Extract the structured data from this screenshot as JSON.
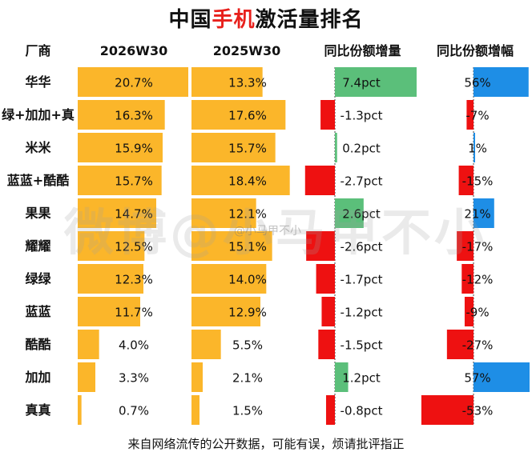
{
  "title": {
    "part1": "中国",
    "accent": "手机",
    "part2": "激活量排名"
  },
  "headers": {
    "brand": "厂商",
    "col1": "2026W30",
    "col2": "2025W30",
    "col3": "同比份额增量",
    "col4": "同比份额增幅"
  },
  "footer": "来自网络流传的公开数据，可能有误，烦请批评指正",
  "watermark": {
    "big": "微博@小马甲不小",
    "small": "@小马甲不小"
  },
  "colors": {
    "bar": "#fbb62a",
    "positive_share": "#5bbf7a",
    "negative": "#ee1111",
    "positive_growth": "#1e8ee6",
    "title_accent": "#e8201c"
  },
  "chart_data": {
    "type": "table",
    "columns": [
      "2026W30",
      "2025W30",
      "同比份额增量",
      "同比份额增幅"
    ],
    "rows": [
      {
        "brand": "华华",
        "share_2026": 20.7,
        "share_2025": 13.3,
        "delta_pct": 7.4,
        "growth": 56,
        "l_2026": "20.7%",
        "l_2025": "13.3%",
        "l_delta": "7.4pct",
        "l_growth": "56%"
      },
      {
        "brand": "绿+加加+真",
        "share_2026": 16.3,
        "share_2025": 17.6,
        "delta_pct": -1.3,
        "growth": -7,
        "l_2026": "16.3%",
        "l_2025": "17.6%",
        "l_delta": "-1.3pct",
        "l_growth": "-7%"
      },
      {
        "brand": "米米",
        "share_2026": 15.9,
        "share_2025": 15.7,
        "delta_pct": 0.2,
        "growth": 1,
        "l_2026": "15.9%",
        "l_2025": "15.7%",
        "l_delta": "0.2pct",
        "l_growth": "1%"
      },
      {
        "brand": "蓝蓝+酷酷",
        "share_2026": 15.7,
        "share_2025": 18.4,
        "delta_pct": -2.7,
        "growth": -15,
        "l_2026": "15.7%",
        "l_2025": "18.4%",
        "l_delta": "-2.7pct",
        "l_growth": "-15%"
      },
      {
        "brand": "果果",
        "share_2026": 14.7,
        "share_2025": 12.1,
        "delta_pct": 2.6,
        "growth": 21,
        "l_2026": "14.7%",
        "l_2025": "12.1%",
        "l_delta": "2.6pct",
        "l_growth": "21%"
      },
      {
        "brand": "耀耀",
        "share_2026": 12.5,
        "share_2025": 15.1,
        "delta_pct": -2.6,
        "growth": -17,
        "l_2026": "12.5%",
        "l_2025": "15.1%",
        "l_delta": "-2.6pct",
        "l_growth": "-17%"
      },
      {
        "brand": "绿绿",
        "share_2026": 12.3,
        "share_2025": 14.0,
        "delta_pct": -1.7,
        "growth": -12,
        "l_2026": "12.3%",
        "l_2025": "14.0%",
        "l_delta": "-1.7pct",
        "l_growth": "-12%"
      },
      {
        "brand": "蓝蓝",
        "share_2026": 11.7,
        "share_2025": 12.9,
        "delta_pct": -1.2,
        "growth": -9,
        "l_2026": "11.7%",
        "l_2025": "12.9%",
        "l_delta": "-1.2pct",
        "l_growth": "-9%"
      },
      {
        "brand": "酷酷",
        "share_2026": 4.0,
        "share_2025": 5.5,
        "delta_pct": -1.5,
        "growth": -27,
        "l_2026": "4.0%",
        "l_2025": "5.5%",
        "l_delta": "-1.5pct",
        "l_growth": "-27%"
      },
      {
        "brand": "加加",
        "share_2026": 3.3,
        "share_2025": 2.1,
        "delta_pct": 1.2,
        "growth": 57,
        "l_2026": "3.3%",
        "l_2025": "2.1%",
        "l_delta": "1.2pct",
        "l_growth": "57%"
      },
      {
        "brand": "真真",
        "share_2026": 0.7,
        "share_2025": 1.5,
        "delta_pct": -0.8,
        "growth": -53,
        "l_2026": "0.7%",
        "l_2025": "1.5%",
        "l_delta": "-0.8pct",
        "l_growth": "-53%"
      }
    ]
  }
}
